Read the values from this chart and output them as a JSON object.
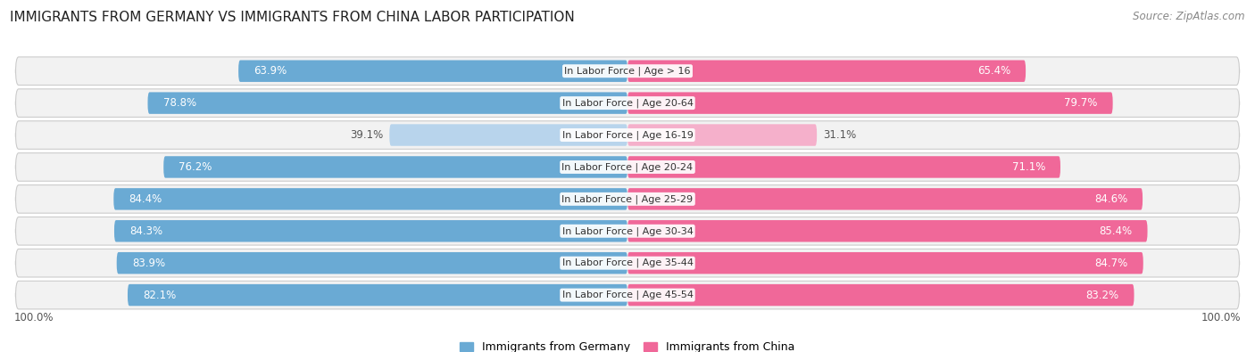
{
  "title": "IMMIGRANTS FROM GERMANY VS IMMIGRANTS FROM CHINA LABOR PARTICIPATION",
  "source": "Source: ZipAtlas.com",
  "categories": [
    "In Labor Force | Age > 16",
    "In Labor Force | Age 20-64",
    "In Labor Force | Age 16-19",
    "In Labor Force | Age 20-24",
    "In Labor Force | Age 25-29",
    "In Labor Force | Age 30-34",
    "In Labor Force | Age 35-44",
    "In Labor Force | Age 45-54"
  ],
  "germany_values": [
    63.9,
    78.8,
    39.1,
    76.2,
    84.4,
    84.3,
    83.9,
    82.1
  ],
  "china_values": [
    65.4,
    79.7,
    31.1,
    71.1,
    84.6,
    85.4,
    84.7,
    83.2
  ],
  "germany_color_dark": "#6aaad4",
  "germany_color_light": "#b8d4ec",
  "china_color_dark": "#f06899",
  "china_color_light": "#f5b0cb",
  "row_bg_color": "#f2f2f2",
  "row_border_color": "#cccccc",
  "max_value": 100.0,
  "legend_germany": "Immigrants from Germany",
  "legend_china": "Immigrants from China",
  "title_fontsize": 11,
  "label_fontsize": 8.5,
  "category_fontsize": 8,
  "legend_fontsize": 9,
  "axis_label_fontsize": 8.5,
  "low_threshold": 50
}
